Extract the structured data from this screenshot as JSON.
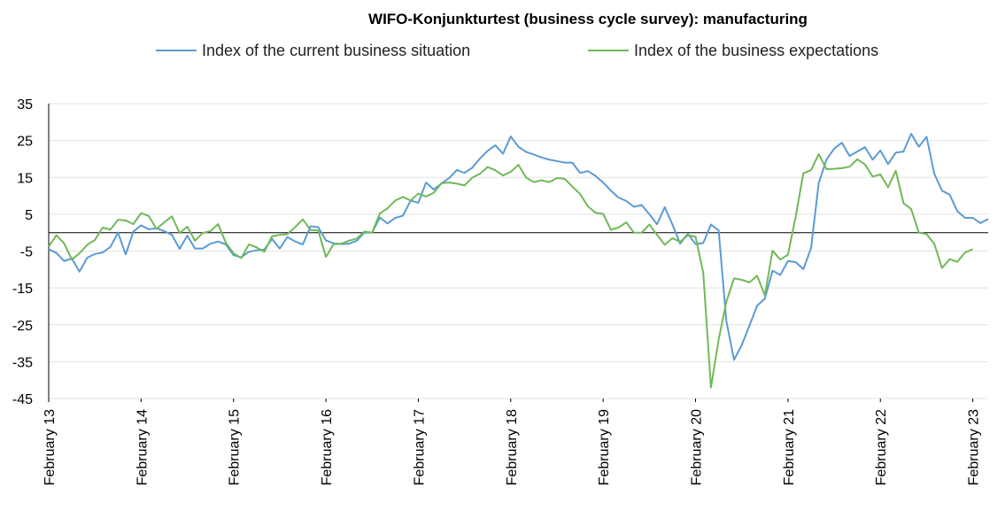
{
  "chart_data": {
    "type": "line",
    "title": "WIFO-Konjunkturtest (business cycle survey): manufacturing",
    "xlabel": "",
    "ylabel": "",
    "ylim": [
      -45,
      35
    ],
    "yticks": [
      35,
      25,
      15,
      5,
      -5,
      -15,
      -25,
      -35,
      -45
    ],
    "x_tick_labels": [
      "February 13",
      "February 14",
      "February 15",
      "February 16",
      "February 17",
      "February 18",
      "February 19",
      "February 20",
      "February 21",
      "February 22",
      "February 23"
    ],
    "x_start": "February 13",
    "x_end": "February 23",
    "frequency": "monthly",
    "grid": true,
    "legend_position": "top-center",
    "series": [
      {
        "name": "Index of the current business situation",
        "color": "#5b9bd5",
        "values": [
          -4.5,
          -5.5,
          -7.7,
          -7.0,
          -10.6,
          -6.8,
          -5.8,
          -5.4,
          -3.9,
          0.0,
          -5.9,
          0.3,
          2.0,
          0.9,
          1.2,
          0.4,
          -0.6,
          -4.4,
          -0.8,
          -4.3,
          -4.3,
          -3.0,
          -2.4,
          -3.2,
          -6.1,
          -6.7,
          -5.2,
          -4.8,
          -4.6,
          -1.7,
          -4.3,
          -1.2,
          -2.4,
          -3.2,
          1.7,
          1.5,
          -2.1,
          -2.9,
          -3.1,
          -3.0,
          -2.2,
          0.0,
          0.0,
          4.1,
          2.5,
          4.0,
          4.6,
          8.7,
          8.1,
          13.6,
          11.7,
          13.3,
          14.8,
          17.0,
          16.2,
          17.6,
          20.1,
          22.2,
          23.7,
          21.4,
          26.1,
          23.3,
          21.9,
          21.2,
          20.4,
          19.8,
          19.4,
          19.0,
          19.0,
          16.2,
          16.7,
          15.4,
          13.6,
          11.4,
          9.5,
          8.6,
          7.0,
          7.5,
          5.0,
          2.3,
          6.9,
          2.2,
          -3.0,
          -0.3,
          -3.1,
          -2.8,
          2.2,
          0.6,
          -24.0,
          -34.5,
          -30.5,
          -25.2,
          -19.8,
          -17.9,
          -10.3,
          -11.5,
          -7.7,
          -8.0,
          -9.9,
          -4.2,
          13.5,
          19.8,
          22.8,
          24.4,
          20.8,
          22.0,
          23.2,
          19.8,
          22.3,
          18.6,
          21.7,
          22.0,
          26.8,
          23.3,
          26.0,
          16.0,
          11.4,
          10.3,
          5.8,
          4.0,
          4.0,
          2.6,
          3.7
        ]
      },
      {
        "name": "Index of the business expectations",
        "color": "#70b858",
        "values": [
          -3.8,
          -0.7,
          -2.9,
          -7.3,
          -5.6,
          -3.3,
          -2.0,
          1.4,
          0.8,
          3.5,
          3.3,
          2.3,
          5.3,
          4.5,
          1.0,
          2.8,
          4.4,
          -0.1,
          1.6,
          -2.2,
          -0.1,
          0.4,
          2.3,
          -2.7,
          -5.6,
          -6.9,
          -3.2,
          -4.0,
          -5.2,
          -1.0,
          -0.6,
          -0.4,
          1.5,
          3.6,
          0.7,
          0.6,
          -6.6,
          -3.1,
          -3.0,
          -2.2,
          -1.6,
          0.3,
          0.0,
          5.2,
          6.6,
          8.7,
          9.7,
          8.7,
          10.6,
          9.8,
          10.8,
          13.4,
          13.6,
          13.3,
          12.8,
          14.9,
          16.0,
          17.8,
          16.9,
          15.5,
          16.5,
          18.4,
          14.9,
          13.7,
          14.2,
          13.7,
          14.8,
          14.6,
          12.5,
          10.5,
          7.2,
          5.4,
          5.1,
          0.8,
          1.4,
          2.8,
          0.0,
          0.0,
          2.2,
          -0.6,
          -3.3,
          -1.5,
          -2.5,
          -0.7,
          -1.1,
          -10.9,
          -42.0,
          -29.0,
          -18.7,
          -12.4,
          -12.8,
          -13.5,
          -11.7,
          -17.0,
          -4.9,
          -7.3,
          -6.0,
          4.3,
          16.1,
          17.0,
          21.3,
          17.2,
          17.3,
          17.5,
          17.9,
          19.9,
          18.5,
          15.2,
          15.8,
          12.3,
          16.8,
          8.0,
          6.4,
          0.0,
          -0.4,
          -3.0,
          -9.6,
          -7.2,
          -7.9,
          -5.4,
          -4.5
        ]
      }
    ]
  }
}
